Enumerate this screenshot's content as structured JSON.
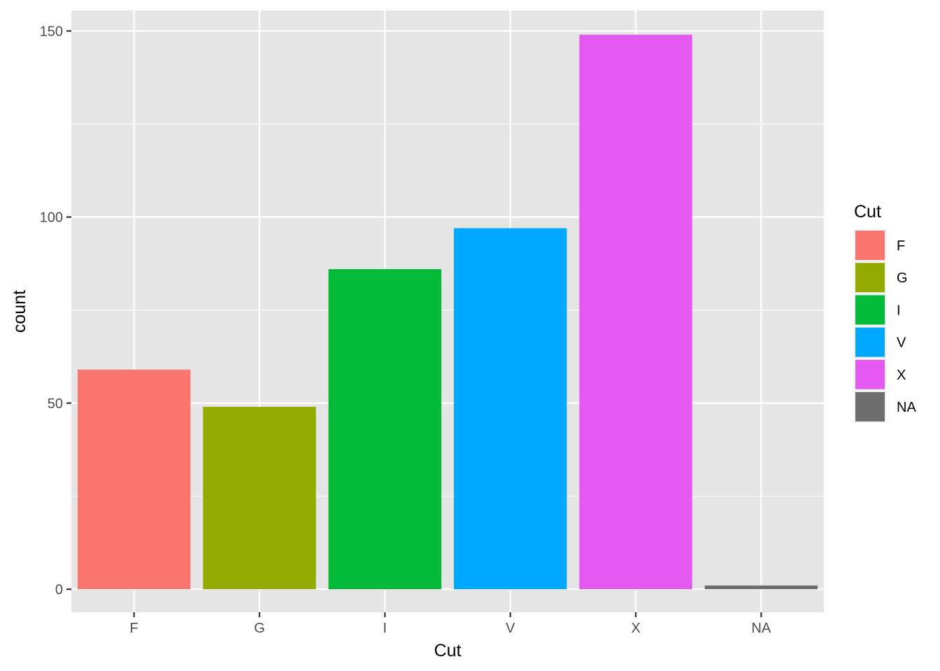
{
  "chart_data": {
    "type": "bar",
    "categories": [
      "F",
      "G",
      "I",
      "V",
      "X",
      "NA"
    ],
    "values": [
      59,
      49,
      86,
      97,
      149,
      1
    ],
    "colors": [
      "#F8766D",
      "#93AA00",
      "#00BA38",
      "#00A9FF",
      "#E45AF0",
      "#6E6E6E"
    ],
    "xlabel": "Cut",
    "ylabel": "count",
    "ylim": [
      -6.2,
      155.5
    ],
    "y_ticks": [
      0,
      50,
      100,
      150
    ],
    "y_tick_labels": [
      "0",
      "50",
      "100",
      "150"
    ],
    "y_minor_ticks": [
      25,
      75,
      125
    ],
    "grid": true,
    "panel_background": "#E5E5E5",
    "grid_color": "#FFFFFF",
    "legend": {
      "title": "Cut",
      "position": "right",
      "entries": [
        "F",
        "G",
        "I",
        "V",
        "X",
        "NA"
      ]
    }
  }
}
